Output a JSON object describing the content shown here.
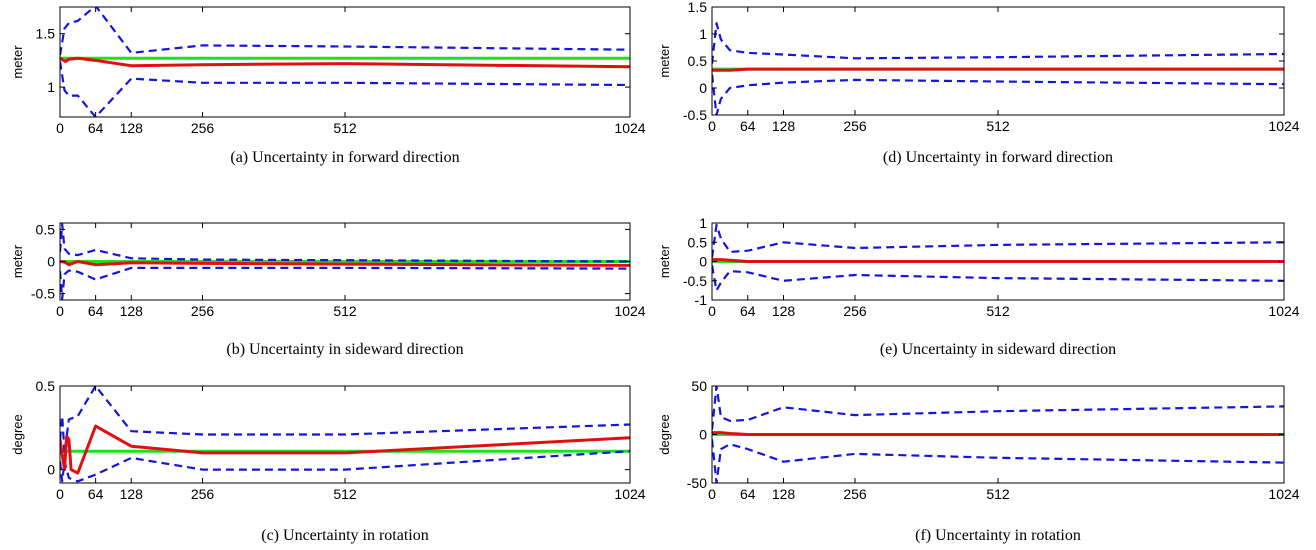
{
  "colors": {
    "ground_truth": "#22dd22",
    "estimate": "#e01010",
    "bounds": "#1515e0"
  },
  "chart_data": [
    {
      "type": "line",
      "caption": "(a)  Uncertainty in forward direction",
      "ylabel": "meter",
      "xlim": [
        0,
        1024
      ],
      "ylim": [
        0.72,
        1.75
      ],
      "xticks": [
        0,
        64,
        128,
        256,
        512,
        1024
      ],
      "yticks": [
        1,
        1.5
      ],
      "series": [
        {
          "role": "ground_truth",
          "style": "solid",
          "x": [
            0,
            1024
          ],
          "y": [
            1.27,
            1.27
          ]
        },
        {
          "role": "estimate",
          "style": "solid",
          "x": [
            0,
            10,
            16,
            32,
            64,
            128,
            256,
            512,
            1024
          ],
          "y": [
            1.27,
            1.24,
            1.26,
            1.27,
            1.25,
            1.2,
            1.21,
            1.22,
            1.19
          ]
        },
        {
          "role": "upper_bound",
          "style": "dashed",
          "x": [
            0,
            8,
            16,
            32,
            64,
            128,
            256,
            512,
            1024
          ],
          "y": [
            1.3,
            1.55,
            1.6,
            1.62,
            1.76,
            1.32,
            1.39,
            1.38,
            1.35
          ]
        },
        {
          "role": "lower_bound",
          "style": "dashed",
          "x": [
            0,
            8,
            16,
            32,
            64,
            128,
            256,
            512,
            1024
          ],
          "y": [
            1.24,
            0.97,
            0.92,
            0.92,
            0.72,
            1.08,
            1.04,
            1.04,
            1.02
          ]
        }
      ]
    },
    {
      "type": "line",
      "caption": "(b)  Uncertainty in sideward direction",
      "ylabel": "meter",
      "xlim": [
        0,
        1024
      ],
      "ylim": [
        -0.6,
        0.6
      ],
      "xticks": [
        0,
        64,
        128,
        256,
        512,
        1024
      ],
      "yticks": [
        -0.5,
        0,
        0.5
      ],
      "series": [
        {
          "role": "ground_truth",
          "style": "solid",
          "x": [
            0,
            1024
          ],
          "y": [
            0,
            0
          ]
        },
        {
          "role": "estimate",
          "style": "solid",
          "x": [
            0,
            8,
            16,
            32,
            64,
            128,
            256,
            512,
            1024
          ],
          "y": [
            0,
            -0.01,
            -0.05,
            0.0,
            -0.05,
            -0.02,
            -0.03,
            -0.04,
            -0.06
          ]
        },
        {
          "role": "upper_bound",
          "style": "dashed",
          "x": [
            0,
            4,
            8,
            16,
            32,
            64,
            128,
            256,
            512,
            1024
          ],
          "y": [
            0.15,
            0.58,
            0.2,
            0.12,
            0.1,
            0.18,
            0.05,
            0.03,
            0.02,
            0.0
          ]
        },
        {
          "role": "lower_bound",
          "style": "dashed",
          "x": [
            0,
            4,
            8,
            16,
            32,
            64,
            128,
            256,
            512,
            1024
          ],
          "y": [
            -0.15,
            -0.58,
            -0.2,
            -0.14,
            -0.16,
            -0.28,
            -0.1,
            -0.1,
            -0.1,
            -0.11
          ]
        }
      ]
    },
    {
      "type": "line",
      "caption": "(c)  Uncertainty in rotation",
      "ylabel": "degree",
      "xlim": [
        0,
        1024
      ],
      "ylim": [
        -0.08,
        0.5
      ],
      "xticks": [
        0,
        64,
        128,
        256,
        512,
        1024
      ],
      "yticks": [
        0,
        0.5
      ],
      "series": [
        {
          "role": "ground_truth",
          "style": "solid",
          "x": [
            0,
            1024
          ],
          "y": [
            0.11,
            0.11
          ]
        },
        {
          "role": "estimate",
          "style": "solid",
          "x": [
            0,
            8,
            12,
            16,
            20,
            32,
            64,
            128,
            256,
            512,
            1024
          ],
          "y": [
            0.18,
            0.0,
            0.2,
            0.18,
            0.0,
            -0.02,
            0.26,
            0.14,
            0.1,
            0.1,
            0.19
          ]
        },
        {
          "role": "upper_bound",
          "style": "dashed",
          "x": [
            0,
            4,
            8,
            16,
            32,
            64,
            128,
            256,
            512,
            1024
          ],
          "y": [
            0.18,
            0.32,
            0.1,
            0.3,
            0.32,
            0.5,
            0.23,
            0.21,
            0.21,
            0.27
          ]
        },
        {
          "role": "lower_bound",
          "style": "dashed",
          "x": [
            0,
            4,
            8,
            16,
            32,
            64,
            128,
            256,
            512,
            1024
          ],
          "y": [
            0.05,
            -0.07,
            0.05,
            -0.05,
            -0.07,
            -0.03,
            0.07,
            0.0,
            0.0,
            0.11
          ]
        }
      ]
    },
    {
      "type": "line",
      "caption": "(d)  Uncertainty in forward direction",
      "ylabel": "meter",
      "xlim": [
        0,
        1024
      ],
      "ylim": [
        -0.5,
        1.5
      ],
      "xticks": [
        0,
        64,
        128,
        256,
        512,
        1024
      ],
      "yticks": [
        -0.5,
        0,
        0.5,
        1,
        1.5
      ],
      "series": [
        {
          "role": "ground_truth",
          "style": "solid",
          "x": [
            0,
            1024
          ],
          "y": [
            0.35,
            0.35
          ]
        },
        {
          "role": "estimate",
          "style": "solid",
          "x": [
            0,
            32,
            64,
            128,
            256,
            512,
            1024
          ],
          "y": [
            0.33,
            0.33,
            0.35,
            0.35,
            0.35,
            0.35,
            0.35
          ]
        },
        {
          "role": "upper_bound",
          "style": "dashed",
          "x": [
            0,
            8,
            16,
            32,
            64,
            128,
            256,
            512,
            1024
          ],
          "y": [
            0.45,
            1.2,
            0.9,
            0.7,
            0.65,
            0.62,
            0.55,
            0.57,
            0.63
          ]
        },
        {
          "role": "lower_bound",
          "style": "dashed",
          "x": [
            0,
            8,
            16,
            32,
            64,
            128,
            256,
            512,
            1024
          ],
          "y": [
            0.25,
            -0.5,
            -0.2,
            0.0,
            0.05,
            0.1,
            0.15,
            0.12,
            0.07
          ]
        }
      ]
    },
    {
      "type": "line",
      "caption": "(e)  Uncertainty in sideward direction",
      "ylabel": "meter",
      "xlim": [
        0,
        1024
      ],
      "ylim": [
        -1,
        1
      ],
      "xticks": [
        0,
        64,
        128,
        256,
        512,
        1024
      ],
      "yticks": [
        -1,
        -0.5,
        0,
        0.5,
        1
      ],
      "series": [
        {
          "role": "ground_truth",
          "style": "solid",
          "x": [
            0,
            1024
          ],
          "y": [
            0,
            0
          ]
        },
        {
          "role": "estimate",
          "style": "solid",
          "x": [
            0,
            16,
            32,
            64,
            128,
            256,
            512,
            1024
          ],
          "y": [
            0.05,
            0.05,
            0.03,
            0.0,
            0.0,
            0.0,
            0.0,
            0.0
          ]
        },
        {
          "role": "upper_bound",
          "style": "dashed",
          "x": [
            0,
            8,
            16,
            32,
            64,
            128,
            256,
            512,
            1024
          ],
          "y": [
            0.1,
            0.95,
            0.6,
            0.25,
            0.28,
            0.5,
            0.35,
            0.43,
            0.5
          ]
        },
        {
          "role": "lower_bound",
          "style": "dashed",
          "x": [
            0,
            8,
            16,
            32,
            64,
            128,
            256,
            512,
            1024
          ],
          "y": [
            -0.1,
            -0.75,
            -0.55,
            -0.25,
            -0.28,
            -0.5,
            -0.35,
            -0.43,
            -0.5
          ]
        }
      ]
    },
    {
      "type": "line",
      "caption": "(f)  Uncertainty in rotation",
      "ylabel": "degree",
      "xlim": [
        0,
        1024
      ],
      "ylim": [
        -50,
        50
      ],
      "xticks": [
        0,
        64,
        128,
        256,
        512,
        1024
      ],
      "yticks": [
        -50,
        0,
        50
      ],
      "series": [
        {
          "role": "ground_truth",
          "style": "solid",
          "x": [
            0,
            1024
          ],
          "y": [
            0,
            0
          ]
        },
        {
          "role": "estimate",
          "style": "solid",
          "x": [
            0,
            16,
            32,
            64,
            128,
            256,
            512,
            1024
          ],
          "y": [
            2,
            2,
            1,
            0,
            0,
            0,
            0,
            0
          ]
        },
        {
          "role": "upper_bound",
          "style": "dashed",
          "x": [
            0,
            8,
            16,
            32,
            64,
            128,
            256,
            512,
            1024
          ],
          "y": [
            5,
            50,
            18,
            14,
            15,
            28,
            20,
            24,
            29
          ]
        },
        {
          "role": "lower_bound",
          "style": "dashed",
          "x": [
            0,
            8,
            16,
            32,
            64,
            128,
            256,
            512,
            1024
          ],
          "y": [
            -5,
            -50,
            -15,
            -10,
            -15,
            -28,
            -20,
            -24,
            -29
          ]
        }
      ]
    }
  ]
}
